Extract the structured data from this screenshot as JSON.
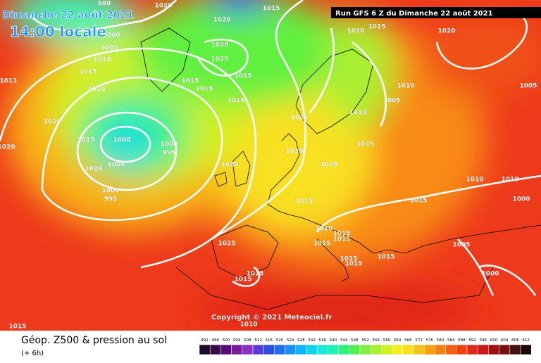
{
  "header": {
    "date": "Dimanche 22 août 2021",
    "time": "14:00 locale",
    "run": "Run GFS 6 Z du Dimanche 22 août 2021",
    "copyright": "Copyright © 2021 Meteociel.fr"
  },
  "legend": {
    "title": "Géop. Z500 & pression au sol",
    "step": "(+ 6h)",
    "scale": [
      492,
      496,
      500,
      504,
      508,
      512,
      516,
      520,
      524,
      528,
      532,
      536,
      540,
      544,
      548,
      552,
      556,
      560,
      564,
      568,
      572,
      576,
      580,
      584,
      588,
      592,
      596,
      600,
      604,
      608,
      612
    ],
    "colors": [
      "#1c0a2a",
      "#3b0a4e",
      "#5b0a74",
      "#7a1a9c",
      "#8c2fc4",
      "#5a3cd8",
      "#2b4ee0",
      "#1f6cf0",
      "#1890f8",
      "#10b4fa",
      "#10d4f0",
      "#18e8d8",
      "#20f0b0",
      "#30f080",
      "#50f050",
      "#80f040",
      "#a8f030",
      "#d0f020",
      "#f0f020",
      "#f8e020",
      "#f8c018",
      "#f8a010",
      "#f88010",
      "#f86010",
      "#f04010",
      "#e02818",
      "#c81818",
      "#a01010",
      "#781010",
      "#481010",
      "#180808"
    ]
  },
  "isobar_labels": [
    "980",
    "1020",
    "1015",
    "1020",
    "1010",
    "1015",
    "1020",
    "1000",
    "1005",
    "1010",
    "1015",
    "1011",
    "1020",
    "1025",
    "1015",
    "1015",
    "1015",
    "1020",
    "1010",
    "1005",
    "1015",
    "1005",
    "1025",
    "1010",
    "1020",
    "1015",
    "1000",
    "1000",
    "995",
    "1005",
    "1010",
    "1020",
    "1020",
    "1015",
    "1020",
    "1020",
    "1000",
    "995",
    "1010",
    "1010",
    "1015",
    "1015",
    "1000",
    "1010",
    "1015",
    "1015",
    "1025",
    "1015",
    "1005",
    "1015",
    "1015",
    "1015",
    "1015",
    "1015",
    "1000",
    "1010",
    "1015"
  ]
}
